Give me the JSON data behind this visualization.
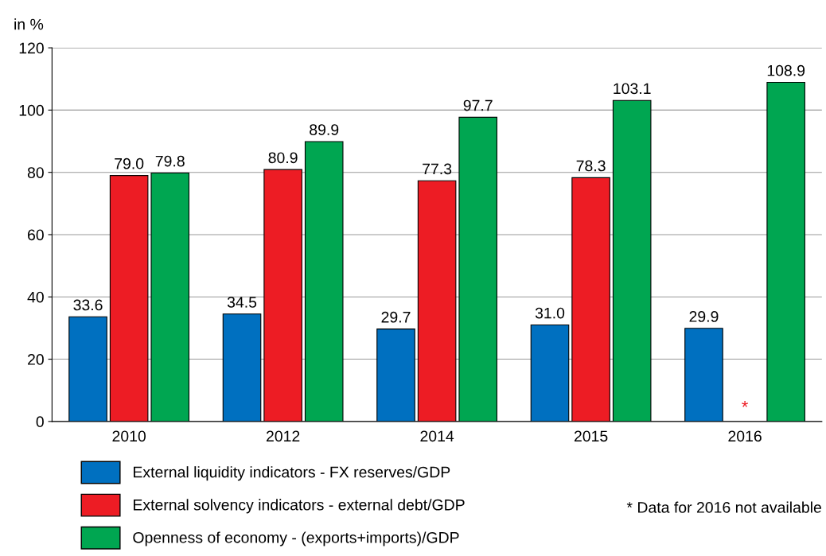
{
  "chart_data": {
    "type": "bar",
    "ylabel": "in %",
    "categories": [
      "2010",
      "2012",
      "2014",
      "2015",
      "2016"
    ],
    "series": [
      {
        "name": "External liquidity indicators - FX reserves/GDP",
        "color": "#0070c0",
        "values": [
          33.6,
          34.5,
          29.7,
          31.0,
          29.9
        ],
        "value_labels": [
          "33.6",
          "34.5",
          "29.7",
          "31.0",
          "29.9"
        ]
      },
      {
        "name": "External solvency indicators - external debt/GDP",
        "color": "#ed1c24",
        "values": [
          79.0,
          80.9,
          77.3,
          78.3,
          null
        ],
        "value_labels": [
          "79.0",
          "80.9",
          "77.3",
          "78.3",
          null
        ]
      },
      {
        "name": "Openness of economy - (exports+imports)/GDP",
        "color": "#00a651",
        "values": [
          79.8,
          89.9,
          97.7,
          103.1,
          108.9
        ],
        "value_labels": [
          "79.8",
          "89.9",
          "97.7",
          "103.1",
          "108.9"
        ]
      }
    ],
    "ylim": [
      0,
      120
    ],
    "yticks": [
      0,
      20,
      40,
      60,
      80,
      100,
      120
    ],
    "grid": "y",
    "legend": "bottom",
    "annotations": [
      "*",
      "* Data for 2016 not available"
    ]
  }
}
